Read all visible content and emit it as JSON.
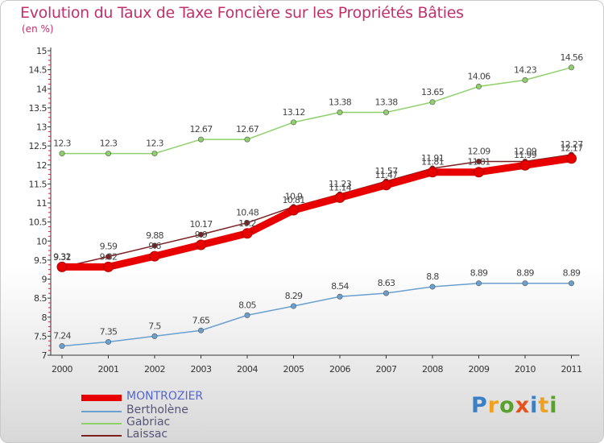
{
  "header": {
    "title": "Evolution du Taux de Taxe Foncière sur les Propriétés Bâties",
    "unit": "(en %)"
  },
  "logo": {
    "letters": [
      "P",
      "r",
      "o",
      "x",
      "i",
      "t",
      "i"
    ],
    "colors": [
      "#3b7fc4",
      "#f0a020",
      "#5aa02c",
      "#e8501a",
      "#3b7fc4",
      "#f0a020",
      "#5aa02c"
    ]
  },
  "chart_data": {
    "type": "line",
    "x": [
      "2000",
      "2001",
      "2002",
      "2003",
      "2004",
      "2005",
      "2006",
      "2007",
      "2008",
      "2009",
      "2010",
      "2011"
    ],
    "ylim": [
      7,
      15
    ],
    "yticks": [
      "7",
      "7.5",
      "8",
      "8.5",
      "9",
      "9.5",
      "10",
      "10.5",
      "11",
      "11.5",
      "12",
      "12.5",
      "13",
      "13.5",
      "14",
      "14.5",
      "15"
    ],
    "grid": false,
    "legend_position": "bottom-left",
    "series": [
      {
        "name": "MONTROZIER",
        "color": "#e80000",
        "values": [
          9.32,
          9.32,
          9.6,
          9.9,
          10.2,
          10.81,
          11.14,
          11.47,
          11.81,
          11.81,
          11.99,
          12.17
        ],
        "labels": [
          "9.32",
          "9.32",
          "9.6",
          "9.9",
          "10.2",
          "10.81",
          "11.14",
          "11.47",
          "11.81",
          "11.81",
          "11.99",
          "12.17"
        ]
      },
      {
        "name": "Bertholène",
        "color": "#6aa0d0",
        "values": [
          7.24,
          7.35,
          7.5,
          7.65,
          8.05,
          8.29,
          8.54,
          8.63,
          8.8,
          8.89,
          8.89,
          8.89
        ],
        "labels": [
          "7.24",
          "7.35",
          "7.5",
          "7.65",
          "8.05",
          "8.29",
          "8.54",
          "8.63",
          "8.8",
          "8.89",
          "8.89",
          "8.89"
        ]
      },
      {
        "name": "Gabriac",
        "color": "#8ed06a",
        "values": [
          12.3,
          12.3,
          12.3,
          12.67,
          12.67,
          13.12,
          13.38,
          13.38,
          13.65,
          14.06,
          14.23,
          14.56
        ],
        "labels": [
          "12.3",
          "12.3",
          "12.3",
          "12.67",
          "12.67",
          "13.12",
          "13.38",
          "13.38",
          "13.65",
          "14.06",
          "14.23",
          "14.56"
        ]
      },
      {
        "name": "Laissac",
        "color": "#7a2020",
        "values": [
          9.31,
          9.59,
          9.88,
          10.17,
          10.48,
          10.9,
          11.23,
          11.57,
          11.91,
          12.09,
          12.09,
          12.27
        ],
        "labels": [
          "9.31",
          "9.59",
          "9.88",
          "10.17",
          "10.48",
          "10.9",
          "11.23",
          "11.57",
          "11.91",
          "12.09",
          "12.09",
          "12.27"
        ]
      }
    ]
  }
}
